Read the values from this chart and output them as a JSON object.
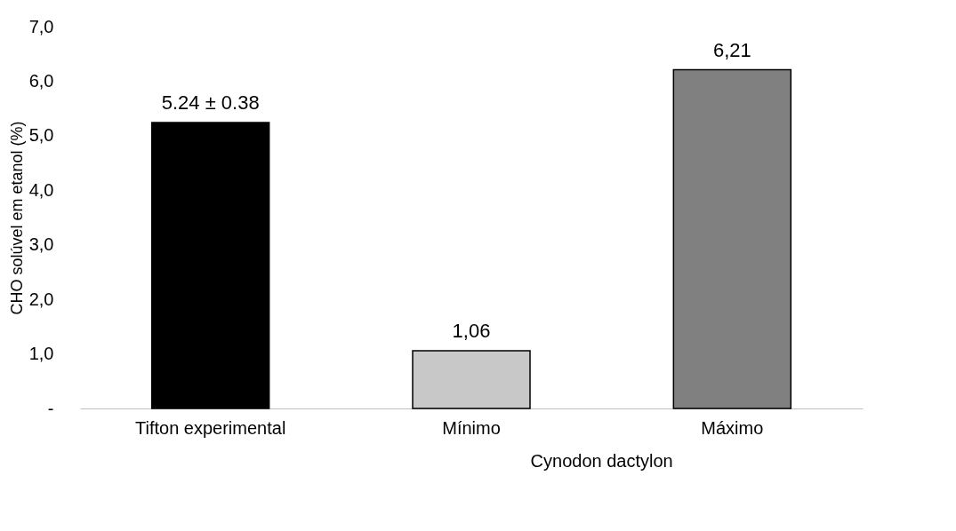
{
  "chart_data": {
    "type": "bar",
    "ylabel": "CHO solúvel em etanol (%)",
    "categories": [
      "Tifton experimental",
      "Mínimo",
      "Máximo"
    ],
    "values": [
      5.24,
      1.06,
      6.21
    ],
    "colors": [
      "#000000",
      "#c8c8c8",
      "#808080"
    ],
    "value_labels": [
      "5.24 ± 0.38",
      "1,06",
      "6,21"
    ],
    "ylim": [
      0,
      7
    ],
    "yticks": [
      {
        "value": 0,
        "label": "-"
      },
      {
        "value": 1,
        "label": "1,0"
      },
      {
        "value": 2,
        "label": "2,0"
      },
      {
        "value": 3,
        "label": "3,0"
      },
      {
        "value": 4,
        "label": "4,0"
      },
      {
        "value": 5,
        "label": "5,0"
      },
      {
        "value": 6,
        "label": "6,0"
      },
      {
        "value": 7,
        "label": "7,0"
      }
    ],
    "annotations": [
      "Cynodon dactylon"
    ],
    "grid": false
  }
}
